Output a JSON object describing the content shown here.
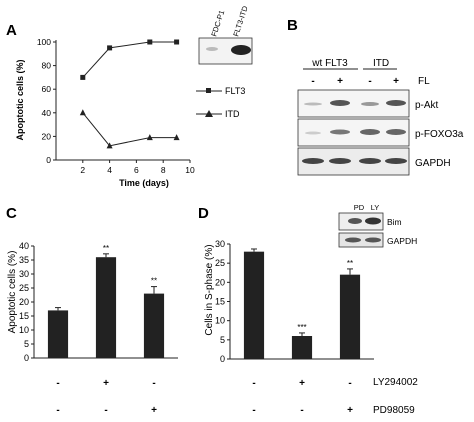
{
  "panels": {
    "A": {
      "letter": "A",
      "chart_data": {
        "type": "line",
        "ylabel": "Apoptotic cells (%)",
        "xlabel": "Time (days)",
        "xlim": [
          0,
          10
        ],
        "ylim": [
          0,
          100
        ],
        "xticks": [
          2,
          4,
          6,
          8,
          10
        ],
        "yticks": [
          0,
          20,
          40,
          60,
          80,
          100
        ],
        "series": [
          {
            "name": "FLT3",
            "marker": "square",
            "x": [
              2,
              4,
              7,
              9
            ],
            "y": [
              70,
              95,
              100,
              100
            ]
          },
          {
            "name": "ITD",
            "marker": "triangle",
            "x": [
              2,
              4,
              7,
              9
            ],
            "y": [
              40,
              12,
              19,
              19
            ]
          }
        ]
      },
      "blot_lanes": [
        "FDC-P1",
        "FLT3-ITD"
      ]
    },
    "B": {
      "letter": "B",
      "groups": [
        "wt FLT3",
        "ITD"
      ],
      "fl_signs": [
        "-",
        "+",
        "-",
        "+"
      ],
      "fl_label": "FL",
      "rows": [
        "p-Akt",
        "p-FOXO3a",
        "GAPDH"
      ]
    },
    "C": {
      "letter": "C",
      "chart_data": {
        "type": "bar",
        "ylabel": "Apoptotic cells (%)",
        "ylim": [
          0,
          40
        ],
        "yticks": [
          0,
          5,
          10,
          15,
          20,
          25,
          30,
          35,
          40
        ],
        "values": [
          17,
          36,
          23
        ],
        "errors": [
          1.0,
          1.2,
          2.5
        ],
        "annotations": [
          "",
          "**",
          "**"
        ],
        "ly_signs": [
          "-",
          "+",
          "-"
        ],
        "pd_signs": [
          "-",
          "-",
          "+"
        ]
      }
    },
    "D": {
      "letter": "D",
      "chart_data": {
        "type": "bar",
        "ylabel": "Cells in S-phase (%)",
        "ylim": [
          0,
          30
        ],
        "yticks": [
          0,
          5,
          10,
          15,
          20,
          25,
          30
        ],
        "values": [
          28,
          6,
          22
        ],
        "errors": [
          0.7,
          0.8,
          1.5
        ],
        "annotations": [
          "",
          "***",
          "**"
        ],
        "ly_signs": [
          "-",
          "+",
          "-"
        ],
        "pd_signs": [
          "-",
          "-",
          "+"
        ]
      },
      "treatment_labels": [
        "LY294002",
        "PD98059"
      ],
      "inset_lanes": [
        "PD",
        "LY"
      ],
      "inset_rows": [
        "Bim",
        "GAPDH"
      ]
    }
  }
}
